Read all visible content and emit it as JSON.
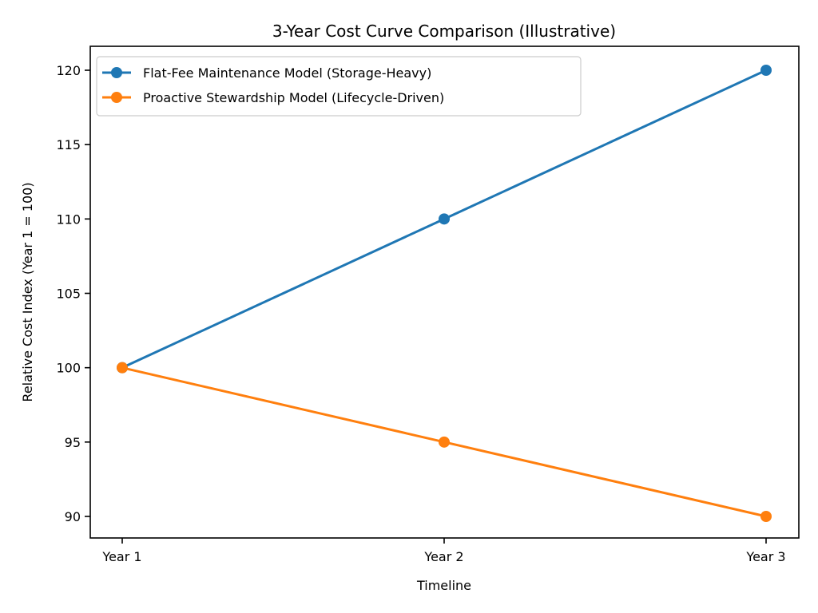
{
  "chart_data": {
    "type": "line",
    "title": "3-Year Cost Curve Comparison (Illustrative)",
    "xlabel": "Timeline",
    "ylabel": "Relative Cost Index (Year 1 = 100)",
    "categories": [
      "Year 1",
      "Year 2",
      "Year 3"
    ],
    "ylim": [
      88.4,
      121.6
    ],
    "yticks": [
      90,
      95,
      100,
      105,
      110,
      115,
      120
    ],
    "grid": false,
    "legend_position": "top-left",
    "series": [
      {
        "name": "Flat-Fee Maintenance Model (Storage-Heavy)",
        "values": [
          100,
          110,
          120
        ],
        "color": "#1f77b4",
        "marker": "circle"
      },
      {
        "name": "Proactive Stewardship Model (Lifecycle-Driven)",
        "values": [
          100,
          95,
          90
        ],
        "color": "#ff7f0e",
        "marker": "circle"
      }
    ]
  }
}
